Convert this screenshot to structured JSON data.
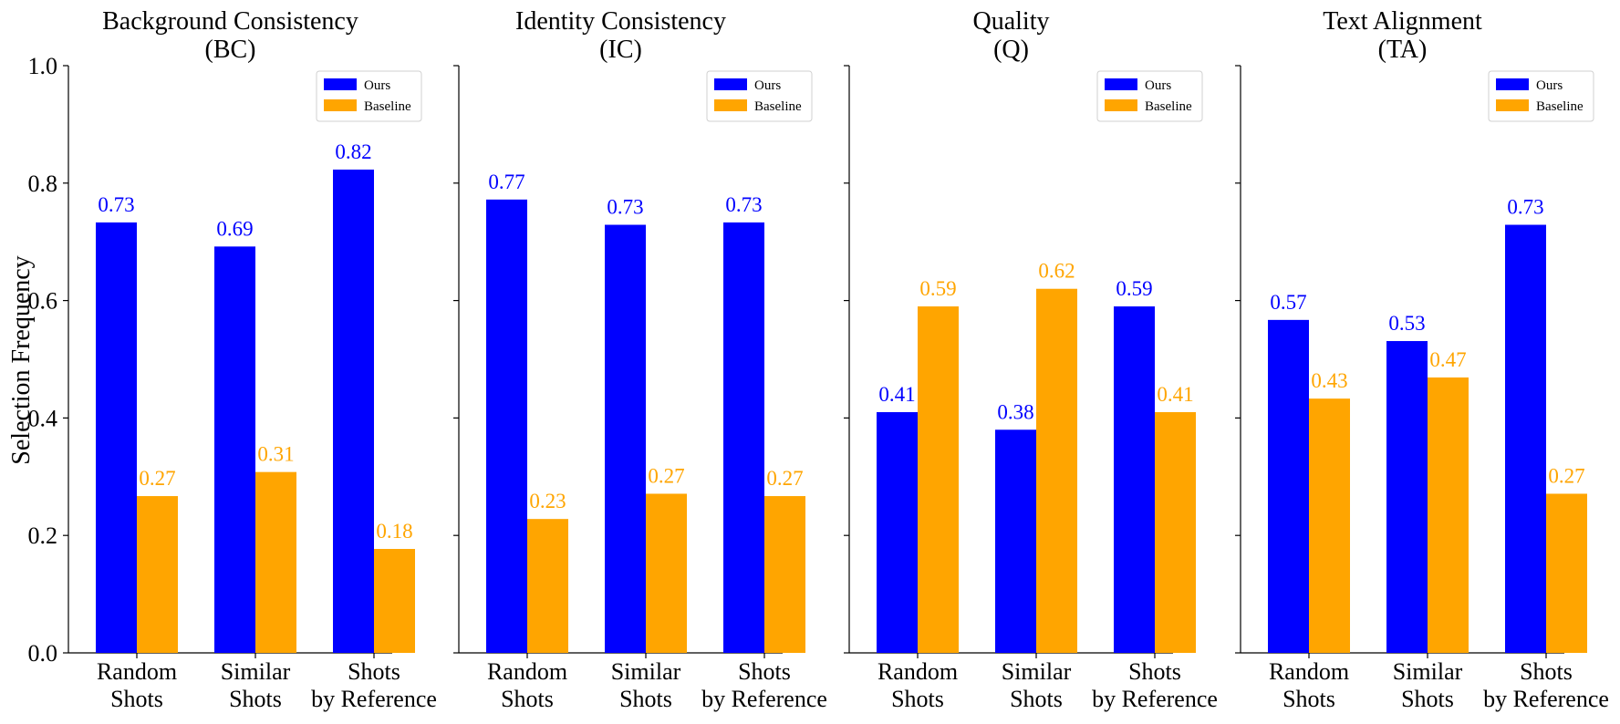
{
  "ylabel": "Selection Frequency",
  "series_colors": {
    "Ours": "#0000ff",
    "Baseline": "#ffa500"
  },
  "chart_data": [
    {
      "type": "bar",
      "title": [
        "Background Consistency",
        "(BC)"
      ],
      "categories": [
        [
          "Random",
          "Shots"
        ],
        [
          "Similar",
          "Shots"
        ],
        [
          "Shots",
          "by Reference"
        ]
      ],
      "series": [
        {
          "name": "Ours",
          "values": [
            0.733,
            0.692,
            0.823
          ],
          "labels": [
            "0.73",
            "0.69",
            "0.82"
          ]
        },
        {
          "name": "Baseline",
          "values": [
            0.267,
            0.308,
            0.177
          ],
          "labels": [
            "0.27",
            "0.31",
            "0.18"
          ]
        }
      ],
      "ylim": [
        0,
        1.0
      ],
      "yticks": [
        "0.0",
        "0.2",
        "0.4",
        "0.6",
        "0.8",
        "1.0"
      ],
      "show_ytick_labels": true,
      "legend": "top-right"
    },
    {
      "type": "bar",
      "title": [
        "Identity Consistency",
        "(IC)"
      ],
      "categories": [
        [
          "Random",
          "Shots"
        ],
        [
          "Similar",
          "Shots"
        ],
        [
          "Shots",
          "by Reference"
        ]
      ],
      "series": [
        {
          "name": "Ours",
          "values": [
            0.772,
            0.729,
            0.733
          ],
          "labels": [
            "0.77",
            "0.73",
            "0.73"
          ]
        },
        {
          "name": "Baseline",
          "values": [
            0.228,
            0.271,
            0.267
          ],
          "labels": [
            "0.23",
            "0.27",
            "0.27"
          ]
        }
      ],
      "ylim": [
        0,
        1.0
      ],
      "yticks": [
        "0.0",
        "0.2",
        "0.4",
        "0.6",
        "0.8",
        "1.0"
      ],
      "show_ytick_labels": false,
      "legend": "top-right"
    },
    {
      "type": "bar",
      "title": [
        "Quality",
        "(Q)"
      ],
      "categories": [
        [
          "Random",
          "Shots"
        ],
        [
          "Similar",
          "Shots"
        ],
        [
          "Shots",
          "by Reference"
        ]
      ],
      "series": [
        {
          "name": "Ours",
          "values": [
            0.41,
            0.38,
            0.59
          ],
          "labels": [
            "0.41",
            "0.38",
            "0.59"
          ]
        },
        {
          "name": "Baseline",
          "values": [
            0.59,
            0.62,
            0.41
          ],
          "labels": [
            "0.59",
            "0.62",
            "0.41"
          ]
        }
      ],
      "ylim": [
        0,
        1.0
      ],
      "yticks": [
        "0.0",
        "0.2",
        "0.4",
        "0.6",
        "0.8",
        "1.0"
      ],
      "show_ytick_labels": false,
      "legend": "top-right"
    },
    {
      "type": "bar",
      "title": [
        "Text Alignment",
        "(TA)"
      ],
      "categories": [
        [
          "Random",
          "Shots"
        ],
        [
          "Similar",
          "Shots"
        ],
        [
          "Shots",
          "by Reference"
        ]
      ],
      "series": [
        {
          "name": "Ours",
          "values": [
            0.567,
            0.531,
            0.729
          ],
          "labels": [
            "0.57",
            "0.53",
            "0.73"
          ]
        },
        {
          "name": "Baseline",
          "values": [
            0.433,
            0.469,
            0.271
          ],
          "labels": [
            "0.43",
            "0.47",
            "0.27"
          ]
        }
      ],
      "ylim": [
        0,
        1.0
      ],
      "yticks": [
        "0.0",
        "0.2",
        "0.4",
        "0.6",
        "0.8",
        "1.0"
      ],
      "show_ytick_labels": false,
      "legend": "top-right"
    }
  ]
}
